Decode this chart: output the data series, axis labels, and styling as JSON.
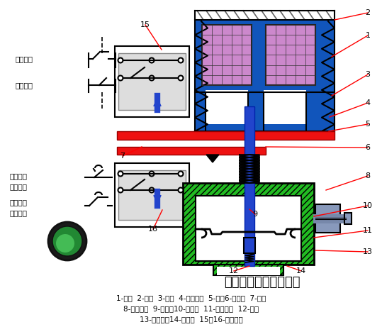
{
  "title": "通电延时型时间继电器",
  "caption_line1": "1-线圈  2-铁心  3-衔铁  4-反力弹簧  5-推板6-活塞杆  7-杠杆",
  "caption_line2": "8-塔形弹簧  9-弱弹簧10-橡皮膜  11-空气室壁  12-活塞",
  "caption_line3": "13-调节螺杆14-进气孔  15、16-微动开关",
  "bg_color": "#ffffff",
  "blue_main": "#1155bb",
  "blue_rod": "#2244cc",
  "green_main": "#22bb22",
  "red_bar": "#ee1111",
  "purple_coil": "#cc88cc",
  "label_color": "#cc0000"
}
